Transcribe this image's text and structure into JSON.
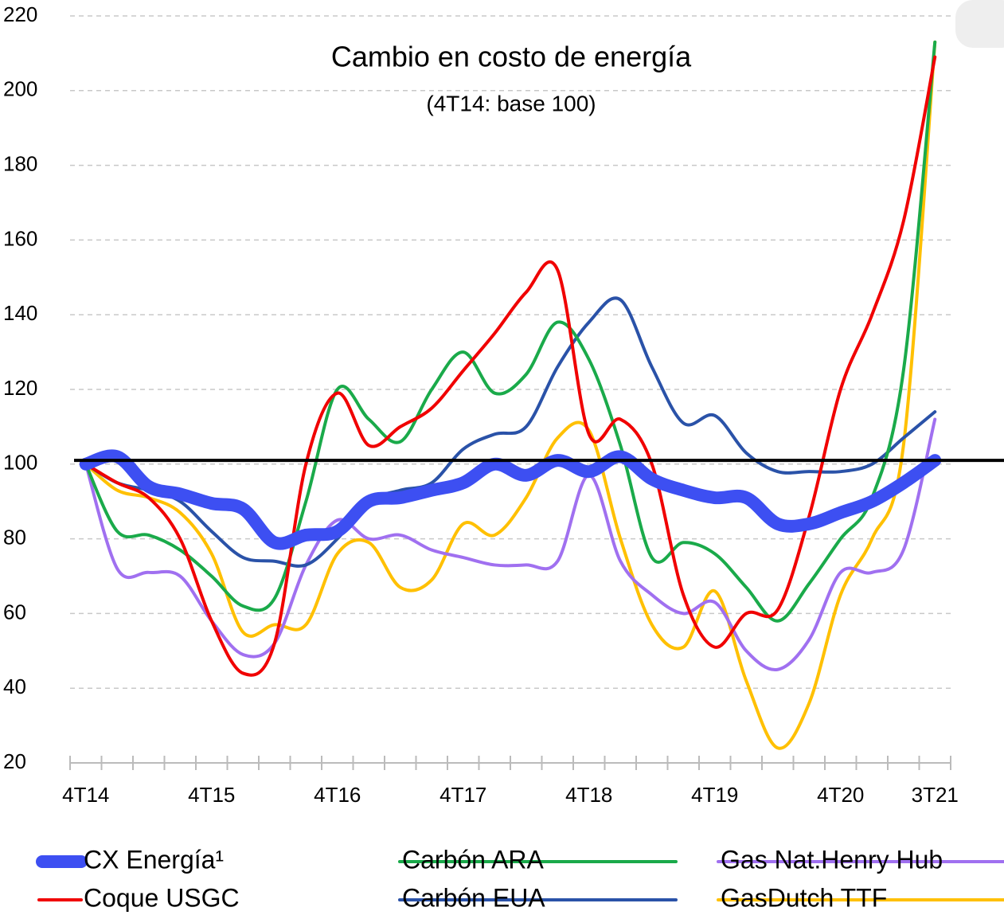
{
  "chart_data": {
    "type": "line",
    "title": "Cambio en costo de energía",
    "subtitle": "(4T14: base 100)",
    "categories": [
      "4T14",
      null,
      null,
      null,
      "4T15",
      null,
      null,
      null,
      "4T16",
      null,
      null,
      null,
      "4T17",
      null,
      null,
      null,
      "4T18",
      null,
      null,
      null,
      "4T19",
      null,
      null,
      null,
      "4T20",
      null,
      null,
      "3T21"
    ],
    "ylim": [
      20,
      220
    ],
    "yticks": [
      20,
      40,
      60,
      80,
      100,
      120,
      140,
      160,
      180,
      200,
      220
    ],
    "grid": true,
    "reference_line": 101,
    "series": [
      {
        "name": "CX Energía¹",
        "color": "#3d4ff2",
        "width": 16,
        "values": [
          100,
          102,
          94,
          92,
          89.5,
          88,
          79,
          81,
          82,
          90,
          91,
          93,
          95,
          100,
          97,
          101,
          98,
          102,
          96,
          93,
          91,
          91,
          84,
          84,
          87,
          90,
          95,
          101
        ]
      },
      {
        "name": "Coque USGC",
        "color": "#f00000",
        "width": 4,
        "values": [
          100,
          95,
          91,
          80,
          58,
          44,
          52,
          100,
          119,
          105,
          110,
          115,
          125,
          135,
          146,
          152,
          108,
          112,
          100,
          65,
          51,
          60,
          61,
          86,
          120,
          140,
          165,
          209
        ]
      },
      {
        "name": "Carbón ARA",
        "color": "#1aaa4a",
        "width": 4,
        "values": [
          100,
          82,
          81,
          77,
          70,
          62,
          64,
          90,
          120,
          112,
          106,
          120,
          130,
          119,
          124,
          138,
          128,
          105,
          75,
          79,
          76,
          67,
          58,
          68,
          80,
          91,
          125,
          213
        ]
      },
      {
        "name": "Carbón EUA",
        "color": "#2a52a8",
        "width": 4,
        "values": [
          100,
          95,
          93,
          90,
          82,
          75,
          74,
          73,
          80,
          90,
          93,
          95,
          104,
          108,
          110,
          126,
          138,
          144,
          126,
          111,
          113,
          103,
          98,
          98,
          98,
          100,
          107,
          114
        ]
      },
      {
        "name": "Gas Nat.Henry Hub",
        "color": "#a070f0",
        "width": 4,
        "values": [
          100,
          72,
          71,
          70,
          58,
          49,
          52,
          73,
          85,
          80,
          81,
          77,
          75,
          73,
          73,
          74,
          97,
          74,
          65,
          60,
          63,
          50,
          45,
          53,
          71,
          71,
          77,
          112
        ]
      },
      {
        "name": "GasDutch TTF",
        "color": "#ffc000",
        "width": 4,
        "values": [
          100,
          93,
          91,
          87,
          76,
          55,
          57,
          57,
          76,
          79,
          67,
          69,
          84,
          81,
          91,
          107,
          109,
          80,
          57,
          51,
          66,
          42,
          24,
          36,
          65,
          80,
          105,
          213
        ]
      }
    ]
  }
}
